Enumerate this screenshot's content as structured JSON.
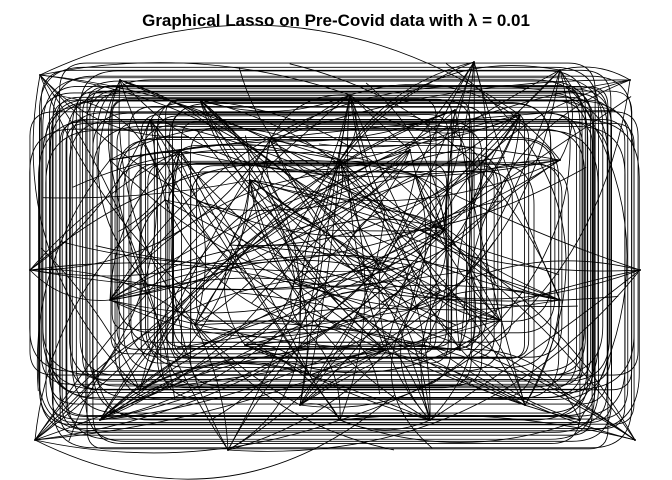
{
  "title": "Graphical Lasso on Pre-Covid data with λ =  0.01",
  "colors": {
    "background": "#ffffff",
    "edge": "#000000",
    "text": "#000000"
  },
  "graph": {
    "method": "graphical lasso",
    "lambda": 0.01,
    "edge_style": "curved",
    "node_labels_shown": false
  }
}
